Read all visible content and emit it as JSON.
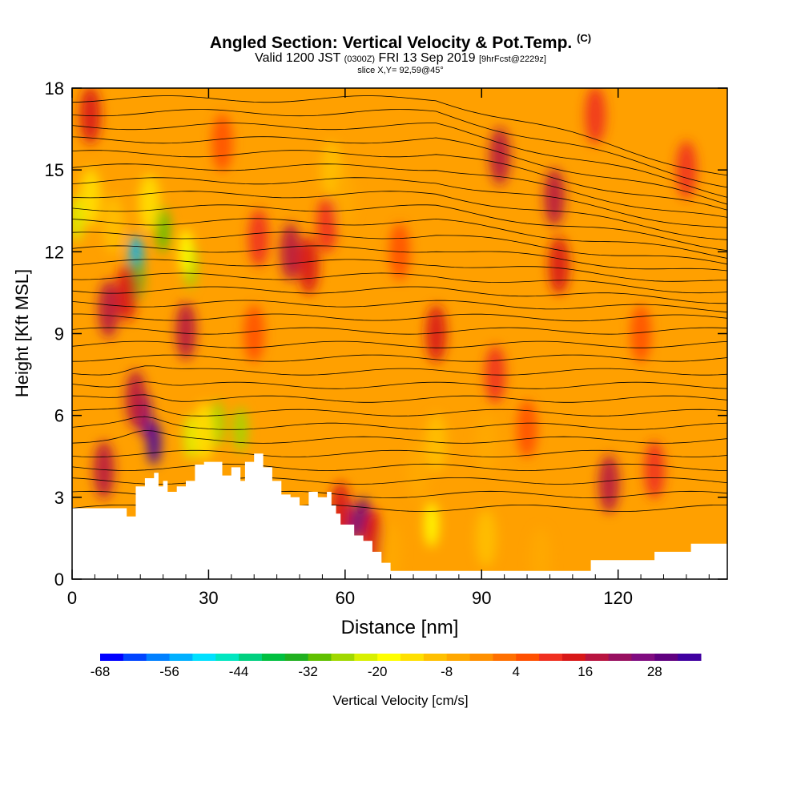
{
  "header": {
    "title_main": "Angled Section: Vertical Velocity & Pot.Temp.",
    "title_units": "(C)",
    "valid_prefix": "Valid 1200 JST",
    "valid_utc": "(0300Z)",
    "valid_date": "FRI 13 Sep 2019",
    "forecast": "[9hrFcst@2229z]",
    "slice": "slice X,Y= 92,59@45°"
  },
  "chart_data": {
    "type": "heatmap",
    "xlabel": "Distance [nm]",
    "ylabel": "Height [Kft MSL]",
    "xlim": [
      0,
      144
    ],
    "ylim": [
      0,
      18
    ],
    "x_ticks": [
      0,
      30,
      60,
      90,
      120
    ],
    "y_ticks": [
      0,
      3,
      6,
      9,
      12,
      15,
      18
    ],
    "grid": false,
    "field": "Vertical Velocity",
    "contour_field": "Potential Temperature",
    "colorbar": {
      "label": "Vertical Velocity [cm/s]",
      "placement": "bottom",
      "range": [
        -68,
        36
      ],
      "step": 4,
      "tick_labels": [
        -68,
        -56,
        -44,
        -32,
        -20,
        -8,
        4,
        16,
        28
      ],
      "colors": [
        "#0000ff",
        "#0044ff",
        "#0080ff",
        "#00b0ff",
        "#00e0ff",
        "#00e6c0",
        "#00d080",
        "#00c040",
        "#20b020",
        "#60c000",
        "#a0d800",
        "#d8f000",
        "#ffff00",
        "#ffe000",
        "#ffc000",
        "#ffa800",
        "#ff9000",
        "#ff7000",
        "#ff5000",
        "#f03020",
        "#d81818",
        "#b81440",
        "#981060",
        "#800c80",
        "#600080",
        "#4000a0"
      ]
    },
    "terrain_profile": {
      "x": [
        0,
        10,
        12,
        14,
        16,
        18,
        19,
        20,
        21,
        23,
        25,
        27,
        29,
        31,
        33,
        35,
        37,
        38,
        40,
        42,
        44,
        46,
        48,
        50,
        52,
        54,
        56,
        57,
        58,
        59,
        62,
        64,
        66,
        68,
        70,
        80,
        100,
        113,
        114,
        120,
        128,
        132,
        136,
        144
      ],
      "height": [
        2.6,
        2.6,
        2.3,
        3.4,
        3.7,
        3.9,
        3.4,
        3.6,
        3.2,
        3.4,
        3.6,
        4.2,
        4.3,
        4.3,
        3.8,
        4.1,
        3.6,
        4.3,
        4.6,
        4.1,
        3.6,
        3.1,
        3.0,
        2.7,
        3.2,
        3.0,
        3.2,
        2.7,
        2.4,
        2.0,
        1.6,
        1.4,
        1.0,
        0.6,
        0.3,
        0.3,
        0.3,
        0.3,
        0.7,
        0.7,
        1.0,
        1.0,
        1.3,
        1.3
      ]
    },
    "velocity_cells": [
      {
        "x": 14,
        "y": 11.8,
        "value": -56
      },
      {
        "x": 14,
        "y": 11.0,
        "value": -36
      },
      {
        "x": 20,
        "y": 12.8,
        "value": -32
      },
      {
        "x": 26,
        "y": 11.5,
        "value": -28
      },
      {
        "x": 25,
        "y": 12.0,
        "value": -20
      },
      {
        "x": 1,
        "y": 13.2,
        "value": -24
      },
      {
        "x": 4,
        "y": 14.0,
        "value": -16
      },
      {
        "x": 9,
        "y": 13.0,
        "value": -12
      },
      {
        "x": 17,
        "y": 13.8,
        "value": -14
      },
      {
        "x": 32,
        "y": 5.7,
        "value": -28
      },
      {
        "x": 26,
        "y": 5.2,
        "value": -24
      },
      {
        "x": 37,
        "y": 5.5,
        "value": -26
      },
      {
        "x": 29,
        "y": 5.4,
        "value": -16
      },
      {
        "x": 18,
        "y": 5.0,
        "value": 32
      },
      {
        "x": 16,
        "y": 6.0,
        "value": 24
      },
      {
        "x": 14,
        "y": 6.6,
        "value": 16
      },
      {
        "x": 7,
        "y": 4.0,
        "value": 16
      },
      {
        "x": 8,
        "y": 9.9,
        "value": 16
      },
      {
        "x": 12,
        "y": 10.5,
        "value": 12
      },
      {
        "x": 25,
        "y": 9.1,
        "value": 16
      },
      {
        "x": 4,
        "y": 17.0,
        "value": 12
      },
      {
        "x": 48,
        "y": 12.0,
        "value": 16
      },
      {
        "x": 52,
        "y": 11.5,
        "value": 12
      },
      {
        "x": 56,
        "y": 13.0,
        "value": 8
      },
      {
        "x": 41,
        "y": 12.5,
        "value": 8
      },
      {
        "x": 61,
        "y": 2.0,
        "value": 24
      },
      {
        "x": 64,
        "y": 2.2,
        "value": 28
      },
      {
        "x": 59,
        "y": 2.5,
        "value": 12
      },
      {
        "x": 66,
        "y": 1.5,
        "value": 12
      },
      {
        "x": 80,
        "y": 9.0,
        "value": 12
      },
      {
        "x": 94,
        "y": 15.5,
        "value": 16
      },
      {
        "x": 106,
        "y": 14.0,
        "value": 16
      },
      {
        "x": 107,
        "y": 11.5,
        "value": 12
      },
      {
        "x": 118,
        "y": 3.5,
        "value": 16
      },
      {
        "x": 128,
        "y": 4.0,
        "value": 8
      },
      {
        "x": 93,
        "y": 7.5,
        "value": 8
      },
      {
        "x": 79,
        "y": 2.0,
        "value": -20
      },
      {
        "x": 80,
        "y": 5.0,
        "value": -12
      },
      {
        "x": 76,
        "y": 4.0,
        "value": -8
      },
      {
        "x": 91,
        "y": 1.5,
        "value": -12
      },
      {
        "x": 91,
        "y": 5.0,
        "value": -8
      },
      {
        "x": 57,
        "y": 15.0,
        "value": -12
      },
      {
        "x": 60,
        "y": 14.0,
        "value": -8
      },
      {
        "x": 103,
        "y": 0.8,
        "value": -8
      },
      {
        "x": 70,
        "y": 1.0,
        "value": -6
      },
      {
        "x": 115,
        "y": 17.0,
        "value": 8
      },
      {
        "x": 135,
        "y": 15.0,
        "value": 8
      },
      {
        "x": 33,
        "y": 16.0,
        "value": 4
      },
      {
        "x": 125,
        "y": 9.0,
        "value": 6
      },
      {
        "x": 72,
        "y": 12.0,
        "value": 6
      },
      {
        "x": 40,
        "y": 9.0,
        "value": 6
      },
      {
        "x": 100,
        "y": 5.5,
        "value": 4
      }
    ]
  }
}
